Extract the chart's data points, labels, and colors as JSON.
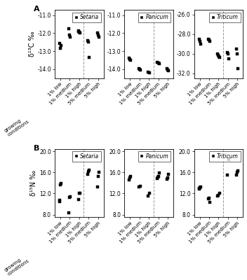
{
  "panel_A": {
    "setaria_C": {
      "1% low": [
        -12.55,
        -12.85,
        -12.7
      ],
      "1% medium": [
        -11.75,
        -12.1,
        -12.2
      ],
      "1% high": [
        -11.85,
        -11.9,
        -11.95,
        -12.0
      ],
      "5% medium": [
        -12.4,
        -12.5,
        -13.35
      ],
      "5% high": [
        -12.0,
        -12.1,
        -12.2
      ]
    },
    "panicum_C": {
      "1% low": [
        -13.4,
        -13.45,
        -13.5
      ],
      "1% medium": [
        -13.95,
        -14.0,
        -14.05
      ],
      "1% high": [
        -14.15,
        -14.2
      ],
      "5% medium": [
        -13.6,
        -13.65,
        -13.7
      ],
      "5% high": [
        -13.95,
        -14.05,
        -14.1
      ]
    },
    "triticum_C": {
      "1% low": [
        -28.5,
        -28.7,
        -29.0
      ],
      "1% medium": [
        -28.5,
        -28.6,
        -28.7
      ],
      "1% high": [
        -30.0,
        -30.15,
        -30.3,
        -30.4
      ],
      "5% medium": [
        -29.85,
        -30.0,
        -30.55
      ],
      "5% high": [
        -29.5,
        -30.05,
        -31.5
      ]
    }
  },
  "panel_B": {
    "setaria_N": {
      "1% low": [
        10.5,
        10.7,
        13.7,
        13.9
      ],
      "1% medium": [
        8.3,
        11.2,
        11.4
      ],
      "1% high": [
        10.9,
        12.0,
        12.1
      ],
      "5% medium": [
        15.6,
        16.2,
        16.4
      ],
      "5% high": [
        13.3,
        15.2,
        16.0
      ]
    },
    "panicum_N": {
      "1% low": [
        14.6,
        15.0,
        15.2
      ],
      "1% medium": [
        13.3,
        13.4
      ],
      "1% high": [
        11.5,
        12.0
      ],
      "5% medium": [
        14.8,
        15.1,
        15.2,
        15.9
      ],
      "5% high": [
        14.7,
        15.0,
        15.6
      ]
    },
    "triticum_N": {
      "1% low": [
        12.8,
        13.0,
        13.1,
        13.2
      ],
      "1% medium": [
        11.0,
        11.15,
        10.3
      ],
      "1% high": [
        11.5,
        11.7,
        12.0
      ],
      "5% medium": [
        15.5,
        18.5
      ],
      "5% high": [
        15.5,
        16.0,
        16.3
      ]
    }
  },
  "x_categories": [
    "1% low",
    "1% medium",
    "1% high",
    "5% medium",
    "5% high"
  ],
  "marker": "s",
  "marker_size": 3,
  "marker_color": "black",
  "ylim_C_setaria": [
    -14.5,
    -10.7
  ],
  "ylim_C_panicum": [
    -14.5,
    -10.7
  ],
  "ylim_C_triticum": [
    -32.5,
    -25.5
  ],
  "yticks_C_setaria": [
    -14.0,
    -13.0,
    -12.0,
    -11.0
  ],
  "yticks_C_panicum": [
    -14.0,
    -13.0,
    -12.0,
    -11.0
  ],
  "yticks_C_triticum": [
    -32.0,
    -30.0,
    -28.0,
    -26.0
  ],
  "ylim_N": [
    7.5,
    20.5
  ],
  "yticks_N": [
    8.0,
    12.0,
    16.0,
    20.0
  ],
  "ylabel_C": "δ¹³C ‰",
  "ylabel_N": "δ¹⁵N ‰",
  "titles": [
    "Setaria",
    "Panicum",
    "Triticum"
  ],
  "bg_color": "#ffffff"
}
